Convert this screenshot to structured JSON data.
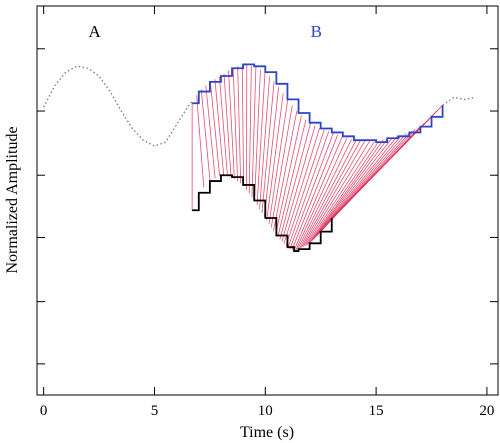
{
  "chart_data": {
    "type": "line",
    "xlabel": "Time (s)",
    "ylabel": "Normalized Amplitude",
    "xlim": [
      -0.3,
      20.5
    ],
    "ylim": [
      0,
      1
    ],
    "x_ticks": [
      0,
      5,
      10,
      15,
      20
    ],
    "x_tick_labels": [
      "0",
      "5",
      "10",
      "15",
      "20"
    ],
    "y_ticks": [
      0.08,
      0.24,
      0.405,
      0.565,
      0.73,
      0.89
    ],
    "y_ticks_labeled": false,
    "annotations": [
      {
        "text": "A",
        "x": 2.3,
        "y": 0.92,
        "color": "#000000"
      },
      {
        "text": "B",
        "x": 12.3,
        "y": 0.92,
        "color": "#2b45c8"
      }
    ],
    "colors": {
      "series_a": "#808080",
      "series_b": "#2b45c8",
      "series_aligned": "#000000",
      "warp_links": "#e0305a"
    },
    "series": [
      {
        "label": "A",
        "style": "dotted",
        "x": [
          0,
          0.5,
          1,
          1.5,
          2,
          2.5,
          3,
          3.5,
          4,
          4.5,
          5,
          5.5,
          6,
          6.5,
          6.7
        ],
        "y": [
          0.74,
          0.795,
          0.83,
          0.845,
          0.84,
          0.82,
          0.78,
          0.73,
          0.685,
          0.655,
          0.64,
          0.65,
          0.695,
          0.74,
          0.755
        ]
      },
      {
        "label": "B",
        "style": "step",
        "x": [
          6.7,
          7,
          7.5,
          8,
          8.5,
          9,
          9.5,
          10,
          10.5,
          11,
          11.5,
          12,
          12.5,
          13,
          13.5,
          14,
          14.5,
          15,
          15.5,
          16,
          16.5,
          17,
          17.5,
          18
        ],
        "y": [
          0.75,
          0.78,
          0.805,
          0.82,
          0.84,
          0.85,
          0.845,
          0.83,
          0.8,
          0.76,
          0.725,
          0.7,
          0.685,
          0.675,
          0.665,
          0.655,
          0.655,
          0.65,
          0.66,
          0.665,
          0.675,
          0.69,
          0.715,
          0.745
        ]
      },
      {
        "label": "",
        "style": "step",
        "x": [
          6.7,
          7,
          7.5,
          8,
          8.5,
          9,
          9.5,
          10,
          10.5,
          11,
          11.3,
          11.5,
          12,
          12.5,
          13
        ],
        "y": [
          0.475,
          0.52,
          0.55,
          0.565,
          0.56,
          0.54,
          0.5,
          0.455,
          0.41,
          0.38,
          0.37,
          0.375,
          0.39,
          0.42,
          0.455
        ]
      },
      {
        "label": "",
        "style": "dotted",
        "x": [
          18,
          18.5,
          19,
          19.5
        ],
        "y": [
          0.745,
          0.765,
          0.76,
          0.765
        ]
      }
    ]
  }
}
